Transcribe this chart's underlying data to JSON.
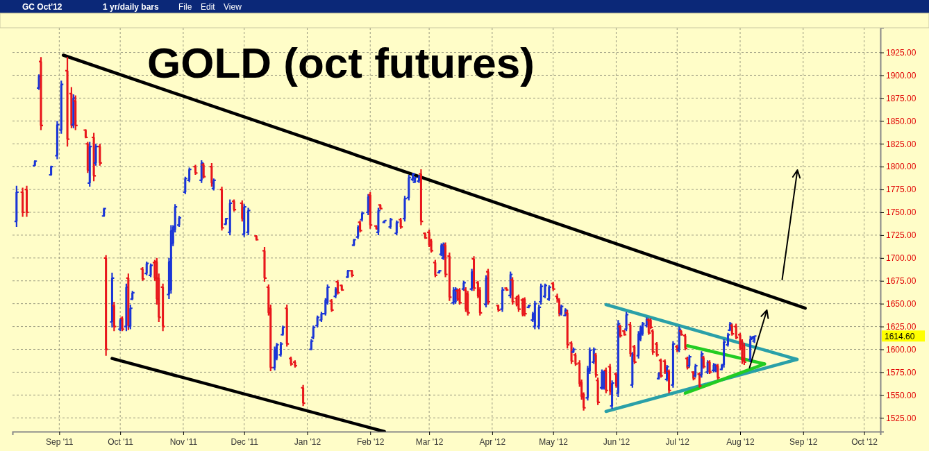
{
  "chart_data": {
    "type": "candlestick",
    "title": "GOLD (oct futures)",
    "annotations": [
      "GC Oct'12",
      "1 yr/daily bars",
      "File",
      "Edit",
      "View",
      "1614.60"
    ],
    "xlim": [
      "2011-08-09",
      "2012-10-09"
    ],
    "xticks": [
      {
        "value": "2011-09-01",
        "label": "Sep '11"
      },
      {
        "value": "2011-10-01",
        "label": "Oct '11"
      },
      {
        "value": "2011-11-01",
        "label": "Nov '11"
      },
      {
        "value": "2011-12-01",
        "label": "Dec '11"
      },
      {
        "value": "2012-01-01",
        "label": "Jan '12"
      },
      {
        "value": "2012-02-01",
        "label": "Feb '12"
      },
      {
        "value": "2012-03-01",
        "label": "Mar '12"
      },
      {
        "value": "2012-04-01",
        "label": "Apr '12"
      },
      {
        "value": "2012-05-01",
        "label": "May '12"
      },
      {
        "value": "2012-06-01",
        "label": "Jun '12"
      },
      {
        "value": "2012-07-01",
        "label": "Jul '12"
      },
      {
        "value": "2012-08-01",
        "label": "Aug '12"
      },
      {
        "value": "2012-09-01",
        "label": "Sep '12"
      },
      {
        "value": "2012-10-01",
        "label": "Oct '12"
      }
    ],
    "ylim": [
      1510,
      1952
    ],
    "yticks": [
      {
        "value": 1525,
        "label": "1525.00"
      },
      {
        "value": 1550,
        "label": "1550.00"
      },
      {
        "value": 1575,
        "label": "1575.00"
      },
      {
        "value": 1600,
        "label": "1600.00"
      },
      {
        "value": 1625,
        "label": "1625.00"
      },
      {
        "value": 1650,
        "label": "1650.00"
      },
      {
        "value": 1675,
        "label": "1675.00"
      },
      {
        "value": 1700,
        "label": "1700.00"
      },
      {
        "value": 1725,
        "label": "1725.00"
      },
      {
        "value": 1750,
        "label": "1750.00"
      },
      {
        "value": 1775,
        "label": "1775.00"
      },
      {
        "value": 1800,
        "label": "1800.00"
      },
      {
        "value": 1825,
        "label": "1825.00"
      },
      {
        "value": 1850,
        "label": "1850.00"
      },
      {
        "value": 1875,
        "label": "1875.00"
      },
      {
        "value": 1900,
        "label": "1900.00"
      },
      {
        "value": 1925,
        "label": "1925.00"
      }
    ],
    "grid": true,
    "x": [
      "2011-08-11",
      "2011-08-14",
      "2011-08-16",
      "2011-08-20",
      "2011-08-22",
      "2011-08-23",
      "2011-08-28",
      "2011-08-31",
      "2011-09-02",
      "2011-09-05",
      "2011-09-07",
      "2011-09-08",
      "2011-09-09",
      "2011-09-14",
      "2011-09-15",
      "2011-09-16",
      "2011-09-18",
      "2011-09-19",
      "2011-09-21",
      "2011-09-23",
      "2011-09-24",
      "2011-09-27",
      "2011-09-28",
      "2011-10-01",
      "2011-10-02",
      "2011-10-04",
      "2011-10-05",
      "2011-10-06",
      "2011-10-07",
      "2011-10-12",
      "2011-10-14",
      "2011-10-16",
      "2011-10-18",
      "2011-10-19",
      "2011-10-20",
      "2011-10-22",
      "2011-10-25",
      "2011-10-26",
      "2011-10-27",
      "2011-10-28",
      "2011-10-30",
      "2011-11-02",
      "2011-11-04",
      "2011-11-07",
      "2011-11-10",
      "2011-11-11",
      "2011-11-15",
      "2011-11-16",
      "2011-11-20",
      "2011-11-22",
      "2011-11-24",
      "2011-11-26",
      "2011-11-30",
      "2011-12-01",
      "2011-12-03",
      "2011-12-07",
      "2011-12-11",
      "2011-12-13",
      "2011-12-14",
      "2011-12-16",
      "2011-12-17",
      "2011-12-19",
      "2011-12-20",
      "2011-12-22",
      "2011-12-24",
      "2011-12-26",
      "2011-12-30",
      "2012-01-03",
      "2012-01-04",
      "2012-01-06",
      "2012-01-08",
      "2012-01-10",
      "2012-01-11",
      "2012-01-13",
      "2012-01-15",
      "2012-01-16",
      "2012-01-18",
      "2012-01-21",
      "2012-01-23",
      "2012-01-24",
      "2012-01-26",
      "2012-01-27",
      "2012-01-28",
      "2012-01-31",
      "2012-02-01",
      "2012-02-04",
      "2012-02-05",
      "2012-02-06",
      "2012-02-08",
      "2012-02-11",
      "2012-02-14",
      "2012-02-16",
      "2012-02-18",
      "2012-02-20",
      "2012-02-22",
      "2012-02-23",
      "2012-02-25",
      "2012-02-26",
      "2012-02-28",
      "2012-03-01",
      "2012-03-02",
      "2012-03-04",
      "2012-03-06",
      "2012-03-07",
      "2012-03-08",
      "2012-03-09",
      "2012-03-11",
      "2012-03-13",
      "2012-03-14",
      "2012-03-15",
      "2012-03-16",
      "2012-03-18",
      "2012-03-19",
      "2012-03-20",
      "2012-03-22",
      "2012-03-23",
      "2012-03-25",
      "2012-03-26",
      "2012-03-29",
      "2012-03-30",
      "2012-04-04",
      "2012-04-06",
      "2012-04-08",
      "2012-04-10",
      "2012-04-11",
      "2012-04-13",
      "2012-04-14",
      "2012-04-16",
      "2012-04-17",
      "2012-04-19",
      "2012-04-21",
      "2012-04-22",
      "2012-04-24",
      "2012-04-25",
      "2012-04-27",
      "2012-04-29",
      "2012-05-01",
      "2012-05-03",
      "2012-05-04",
      "2012-05-05",
      "2012-05-07",
      "2012-05-08",
      "2012-05-10",
      "2012-05-11",
      "2012-05-12",
      "2012-05-14",
      "2012-05-15",
      "2012-05-16",
      "2012-05-18",
      "2012-05-19",
      "2012-05-21",
      "2012-05-22",
      "2012-05-23",
      "2012-05-25",
      "2012-05-26",
      "2012-05-27",
      "2012-05-29",
      "2012-05-30",
      "2012-06-01",
      "2012-06-02",
      "2012-06-03",
      "2012-06-05",
      "2012-06-06",
      "2012-06-08",
      "2012-06-09",
      "2012-06-10",
      "2012-06-12",
      "2012-06-13",
      "2012-06-14",
      "2012-06-16",
      "2012-06-17",
      "2012-06-18",
      "2012-06-19",
      "2012-06-21",
      "2012-06-22",
      "2012-06-23",
      "2012-06-25",
      "2012-06-26",
      "2012-06-27",
      "2012-06-29",
      "2012-07-01",
      "2012-07-02",
      "2012-07-03",
      "2012-07-05",
      "2012-07-06",
      "2012-07-07",
      "2012-07-09",
      "2012-07-10",
      "2012-07-12",
      "2012-07-13",
      "2012-07-14",
      "2012-07-16",
      "2012-07-17",
      "2012-07-19",
      "2012-07-20",
      "2012-07-21",
      "2012-07-23",
      "2012-07-24",
      "2012-07-26",
      "2012-07-27",
      "2012-07-28",
      "2012-07-30",
      "2012-08-01",
      "2012-08-02",
      "2012-08-03",
      "2012-08-06",
      "2012-08-07",
      "2012-08-08"
    ],
    "ohlc": [
      [
        1740,
        1779,
        1734,
        1772
      ],
      [
        1772,
        1777,
        1745,
        1750
      ],
      [
        1775,
        1779,
        1745,
        1750
      ],
      [
        1801,
        1807,
        1801,
        1806
      ],
      [
        1886,
        1901,
        1884,
        1899
      ],
      [
        1915,
        1920,
        1840,
        1845
      ],
      [
        1791,
        1801,
        1790,
        1800
      ],
      [
        1812,
        1850,
        1808,
        1846
      ],
      [
        1840,
        1894,
        1836,
        1890
      ],
      [
        1905,
        1920,
        1822,
        1830
      ],
      [
        1880,
        1887,
        1842,
        1845
      ],
      [
        1846,
        1879,
        1842,
        1875
      ],
      [
        1872,
        1878,
        1840,
        1845
      ],
      [
        1840,
        1841,
        1831,
        1832
      ],
      [
        1825,
        1827,
        1793,
        1796
      ],
      [
        1782,
        1827,
        1778,
        1822
      ],
      [
        1832,
        1837,
        1784,
        1790
      ],
      [
        1804,
        1825,
        1801,
        1822
      ],
      [
        1822,
        1825,
        1801,
        1804
      ],
      [
        1746,
        1755,
        1745,
        1754
      ],
      [
        1700,
        1703,
        1593,
        1600
      ],
      [
        1630,
        1684,
        1624,
        1678
      ],
      [
        1648,
        1652,
        1620,
        1625
      ],
      [
        1622,
        1634,
        1620,
        1632
      ],
      [
        1634,
        1636,
        1620,
        1622
      ],
      [
        1625,
        1672,
        1620,
        1668
      ],
      [
        1678,
        1683,
        1621,
        1626
      ],
      [
        1625,
        1649,
        1622,
        1645
      ],
      [
        1655,
        1664,
        1654,
        1662
      ],
      [
        1688,
        1690,
        1675,
        1677
      ],
      [
        1683,
        1696,
        1681,
        1694
      ],
      [
        1681,
        1694,
        1679,
        1692
      ],
      [
        1695,
        1698,
        1675,
        1678
      ],
      [
        1696,
        1700,
        1649,
        1655
      ],
      [
        1678,
        1683,
        1630,
        1635
      ],
      [
        1668,
        1672,
        1620,
        1625
      ],
      [
        1660,
        1700,
        1655,
        1696
      ],
      [
        1665,
        1736,
        1661,
        1730
      ],
      [
        1716,
        1736,
        1713,
        1734
      ],
      [
        1731,
        1759,
        1728,
        1756
      ],
      [
        1736,
        1746,
        1734,
        1744
      ],
      [
        1772,
        1789,
        1770,
        1787
      ],
      [
        1785,
        1799,
        1783,
        1797
      ],
      [
        1800,
        1802,
        1791,
        1793
      ],
      [
        1785,
        1807,
        1782,
        1804
      ],
      [
        1802,
        1804,
        1787,
        1789
      ],
      [
        1800,
        1804,
        1778,
        1782
      ],
      [
        1776,
        1787,
        1774,
        1785
      ],
      [
        1775,
        1778,
        1730,
        1733
      ],
      [
        1737,
        1744,
        1736,
        1743
      ],
      [
        1728,
        1764,
        1725,
        1760
      ],
      [
        1762,
        1764,
        1751,
        1753
      ],
      [
        1760,
        1763,
        1740,
        1743
      ],
      [
        1726,
        1759,
        1723,
        1756
      ],
      [
        1728,
        1755,
        1725,
        1752
      ],
      [
        1724,
        1725,
        1719,
        1720
      ],
      [
        1708,
        1712,
        1674,
        1678
      ],
      [
        1668,
        1671,
        1637,
        1640
      ],
      [
        1645,
        1649,
        1576,
        1580
      ],
      [
        1580,
        1603,
        1577,
        1600
      ],
      [
        1590,
        1607,
        1588,
        1605
      ],
      [
        1594,
        1608,
        1592,
        1606
      ],
      [
        1616,
        1626,
        1615,
        1624
      ],
      [
        1645,
        1649,
        1603,
        1606
      ],
      [
        1590,
        1592,
        1582,
        1584
      ],
      [
        1586,
        1588,
        1580,
        1582
      ],
      [
        1558,
        1561,
        1538,
        1541
      ],
      [
        1600,
        1611,
        1599,
        1609
      ],
      [
        1613,
        1626,
        1611,
        1624
      ],
      [
        1626,
        1637,
        1624,
        1635
      ],
      [
        1632,
        1641,
        1630,
        1639
      ],
      [
        1639,
        1656,
        1637,
        1654
      ],
      [
        1651,
        1671,
        1649,
        1668
      ],
      [
        1653,
        1655,
        1641,
        1643
      ],
      [
        1658,
        1668,
        1656,
        1666
      ],
      [
        1674,
        1676,
        1660,
        1662
      ],
      [
        1670,
        1671,
        1664,
        1665
      ],
      [
        1679,
        1687,
        1678,
        1686
      ],
      [
        1686,
        1687,
        1679,
        1681
      ],
      [
        1714,
        1721,
        1713,
        1720
      ],
      [
        1723,
        1736,
        1721,
        1734
      ],
      [
        1739,
        1741,
        1728,
        1730
      ],
      [
        1742,
        1751,
        1740,
        1749
      ],
      [
        1750,
        1770,
        1747,
        1767
      ],
      [
        1769,
        1772,
        1732,
        1736
      ],
      [
        1735,
        1736,
        1731,
        1732
      ],
      [
        1728,
        1755,
        1725,
        1752
      ],
      [
        1758,
        1759,
        1753,
        1754
      ],
      [
        1739,
        1741,
        1738,
        1741
      ],
      [
        1734,
        1744,
        1732,
        1742
      ],
      [
        1727,
        1741,
        1725,
        1739
      ],
      [
        1742,
        1744,
        1732,
        1734
      ],
      [
        1743,
        1768,
        1740,
        1765
      ],
      [
        1766,
        1791,
        1763,
        1788
      ],
      [
        1786,
        1793,
        1784,
        1792
      ],
      [
        1783,
        1789,
        1782,
        1788
      ],
      [
        1784,
        1791,
        1782,
        1789
      ],
      [
        1792,
        1797,
        1736,
        1740
      ],
      [
        1727,
        1728,
        1721,
        1722
      ],
      [
        1728,
        1731,
        1712,
        1714
      ],
      [
        1719,
        1721,
        1706,
        1708
      ],
      [
        1695,
        1698,
        1679,
        1681
      ],
      [
        1684,
        1687,
        1683,
        1686
      ],
      [
        1704,
        1716,
        1702,
        1714
      ],
      [
        1700,
        1717,
        1698,
        1715
      ],
      [
        1714,
        1717,
        1679,
        1682
      ],
      [
        1702,
        1706,
        1653,
        1657
      ],
      [
        1651,
        1668,
        1649,
        1665
      ],
      [
        1652,
        1668,
        1650,
        1666
      ],
      [
        1664,
        1666,
        1653,
        1655
      ],
      [
        1665,
        1667,
        1649,
        1651
      ],
      [
        1666,
        1675,
        1664,
        1673
      ],
      [
        1665,
        1668,
        1641,
        1644
      ],
      [
        1661,
        1664,
        1637,
        1640
      ],
      [
        1666,
        1688,
        1664,
        1685
      ],
      [
        1699,
        1702,
        1664,
        1667
      ],
      [
        1673,
        1675,
        1656,
        1658
      ],
      [
        1665,
        1668,
        1637,
        1640
      ],
      [
        1649,
        1681,
        1646,
        1678
      ],
      [
        1685,
        1688,
        1649,
        1652
      ],
      [
        1648,
        1649,
        1641,
        1643
      ],
      [
        1644,
        1668,
        1641,
        1665
      ],
      [
        1667,
        1668,
        1664,
        1665
      ],
      [
        1659,
        1685,
        1656,
        1682
      ],
      [
        1676,
        1679,
        1649,
        1652
      ],
      [
        1656,
        1658,
        1647,
        1649
      ],
      [
        1658,
        1660,
        1641,
        1644
      ],
      [
        1654,
        1656,
        1636,
        1638
      ],
      [
        1655,
        1657,
        1636,
        1639
      ],
      [
        1646,
        1649,
        1645,
        1648
      ],
      [
        1632,
        1641,
        1630,
        1639
      ],
      [
        1625,
        1653,
        1622,
        1650
      ],
      [
        1625,
        1649,
        1622,
        1646
      ],
      [
        1652,
        1672,
        1649,
        1669
      ],
      [
        1658,
        1672,
        1656,
        1670
      ],
      [
        1655,
        1670,
        1653,
        1668
      ],
      [
        1672,
        1674,
        1664,
        1666
      ],
      [
        1658,
        1661,
        1651,
        1655
      ],
      [
        1654,
        1656,
        1636,
        1639
      ],
      [
        1639,
        1649,
        1637,
        1647
      ],
      [
        1637,
        1645,
        1636,
        1643
      ],
      [
        1640,
        1643,
        1601,
        1605
      ],
      [
        1607,
        1609,
        1584,
        1587
      ],
      [
        1597,
        1602,
        1596,
        1600
      ],
      [
        1594,
        1596,
        1582,
        1584
      ],
      [
        1585,
        1588,
        1559,
        1562
      ],
      [
        1564,
        1567,
        1545,
        1548
      ],
      [
        1551,
        1553,
        1533,
        1536
      ],
      [
        1547,
        1582,
        1544,
        1579
      ],
      [
        1576,
        1602,
        1573,
        1599
      ],
      [
        1586,
        1602,
        1584,
        1600
      ],
      [
        1594,
        1596,
        1569,
        1572
      ],
      [
        1566,
        1569,
        1539,
        1542
      ],
      [
        1558,
        1578,
        1556,
        1575
      ],
      [
        1558,
        1577,
        1556,
        1575
      ],
      [
        1577,
        1580,
        1552,
        1555
      ],
      [
        1581,
        1584,
        1550,
        1554
      ],
      [
        1538,
        1566,
        1535,
        1563
      ],
      [
        1573,
        1575,
        1558,
        1560
      ],
      [
        1552,
        1632,
        1548,
        1628
      ],
      [
        1625,
        1627,
        1613,
        1615
      ],
      [
        1620,
        1621,
        1615,
        1616
      ],
      [
        1622,
        1641,
        1620,
        1638
      ],
      [
        1627,
        1630,
        1592,
        1595
      ],
      [
        1561,
        1597,
        1558,
        1594
      ],
      [
        1603,
        1605,
        1584,
        1586
      ],
      [
        1593,
        1620,
        1590,
        1617
      ],
      [
        1611,
        1626,
        1609,
        1624
      ],
      [
        1617,
        1630,
        1615,
        1628
      ],
      [
        1626,
        1635,
        1624,
        1633
      ],
      [
        1632,
        1634,
        1616,
        1618
      ],
      [
        1632,
        1634,
        1622,
        1624
      ],
      [
        1620,
        1622,
        1594,
        1597
      ],
      [
        1606,
        1608,
        1592,
        1594
      ],
      [
        1568,
        1575,
        1567,
        1574
      ],
      [
        1588,
        1590,
        1569,
        1571
      ],
      [
        1587,
        1589,
        1573,
        1575
      ],
      [
        1567,
        1583,
        1565,
        1581
      ],
      [
        1576,
        1578,
        1552,
        1555
      ],
      [
        1561,
        1609,
        1558,
        1606
      ],
      [
        1603,
        1605,
        1597,
        1599
      ],
      [
        1600,
        1625,
        1597,
        1622
      ],
      [
        1620,
        1621,
        1615,
        1616
      ],
      [
        1615,
        1617,
        1599,
        1601
      ],
      [
        1590,
        1592,
        1578,
        1580
      ],
      [
        1582,
        1594,
        1580,
        1592
      ],
      [
        1575,
        1576,
        1566,
        1568
      ],
      [
        1571,
        1584,
        1569,
        1582
      ],
      [
        1573,
        1575,
        1558,
        1560
      ],
      [
        1572,
        1598,
        1569,
        1595
      ],
      [
        1591,
        1593,
        1579,
        1581
      ],
      [
        1575,
        1588,
        1573,
        1586
      ],
      [
        1586,
        1588,
        1573,
        1575
      ],
      [
        1577,
        1585,
        1575,
        1583
      ],
      [
        1577,
        1584,
        1575,
        1582
      ],
      [
        1582,
        1584,
        1567,
        1569
      ],
      [
        1578,
        1584,
        1577,
        1583
      ],
      [
        1583,
        1611,
        1580,
        1608
      ],
      [
        1605,
        1618,
        1603,
        1616
      ],
      [
        1621,
        1630,
        1620,
        1628
      ],
      [
        1626,
        1628,
        1615,
        1617
      ],
      [
        1625,
        1628,
        1611,
        1613
      ],
      [
        1616,
        1618,
        1599,
        1601
      ],
      [
        1609,
        1611,
        1584,
        1588
      ],
      [
        1604,
        1607,
        1583,
        1586
      ],
      [
        1589,
        1615,
        1586,
        1611
      ],
      [
        1612,
        1614,
        1611,
        1614
      ],
      [
        1609,
        1615,
        1607,
        1614.6
      ]
    ],
    "colors": [
      "#1a35d6",
      "#e8161b",
      "#e8161b",
      "#1a35d6",
      "#1a35d6",
      "#e8161b",
      "#1a35d6",
      "#1a35d6",
      "#1a35d6",
      "#e8161b",
      "#e8161b",
      "#1a35d6",
      "#e8161b",
      "#e8161b",
      "#e8161b",
      "#1a35d6",
      "#e8161b",
      "#1a35d6",
      "#e8161b",
      "#1a35d6",
      "#e8161b",
      "#1a35d6",
      "#e8161b",
      "#1a35d6",
      "#e8161b",
      "#1a35d6",
      "#e8161b",
      "#1a35d6",
      "#1a35d6",
      "#e8161b",
      "#1a35d6",
      "#1a35d6",
      "#e8161b",
      "#e8161b",
      "#e8161b",
      "#e8161b",
      "#1a35d6",
      "#1a35d6",
      "#1a35d6",
      "#1a35d6",
      "#1a35d6",
      "#1a35d6",
      "#1a35d6",
      "#e8161b",
      "#1a35d6",
      "#e8161b",
      "#e8161b",
      "#1a35d6",
      "#e8161b",
      "#1a35d6",
      "#1a35d6",
      "#e8161b",
      "#e8161b",
      "#1a35d6",
      "#1a35d6",
      "#e8161b",
      "#e8161b",
      "#e8161b",
      "#e8161b",
      "#1a35d6",
      "#1a35d6",
      "#1a35d6",
      "#1a35d6",
      "#e8161b",
      "#e8161b",
      "#e8161b",
      "#e8161b",
      "#1a35d6",
      "#1a35d6",
      "#1a35d6",
      "#1a35d6",
      "#1a35d6",
      "#1a35d6",
      "#e8161b",
      "#1a35d6",
      "#e8161b",
      "#e8161b",
      "#1a35d6",
      "#e8161b",
      "#1a35d6",
      "#1a35d6",
      "#e8161b",
      "#1a35d6",
      "#1a35d6",
      "#e8161b",
      "#e8161b",
      "#1a35d6",
      "#e8161b",
      "#1a35d6",
      "#1a35d6",
      "#1a35d6",
      "#e8161b",
      "#1a35d6",
      "#1a35d6",
      "#1a35d6",
      "#1a35d6",
      "#1a35d6",
      "#e8161b",
      "#e8161b",
      "#e8161b",
      "#e8161b",
      "#e8161b",
      "#1a35d6",
      "#1a35d6",
      "#1a35d6",
      "#e8161b",
      "#e8161b",
      "#1a35d6",
      "#1a35d6",
      "#e8161b",
      "#e8161b",
      "#1a35d6",
      "#e8161b",
      "#e8161b",
      "#1a35d6",
      "#e8161b",
      "#e8161b",
      "#e8161b",
      "#1a35d6",
      "#e8161b",
      "#e8161b",
      "#1a35d6",
      "#e8161b",
      "#1a35d6",
      "#e8161b",
      "#e8161b",
      "#e8161b",
      "#e8161b",
      "#e8161b",
      "#1a35d6",
      "#1a35d6",
      "#1a35d6",
      "#1a35d6",
      "#1a35d6",
      "#1a35d6",
      "#1a35d6",
      "#e8161b",
      "#e8161b",
      "#e8161b",
      "#1a35d6",
      "#1a35d6",
      "#e8161b",
      "#e8161b",
      "#1a35d6",
      "#e8161b",
      "#e8161b",
      "#e8161b",
      "#e8161b",
      "#1a35d6",
      "#1a35d6",
      "#1a35d6",
      "#e8161b",
      "#e8161b",
      "#1a35d6",
      "#1a35d6",
      "#e8161b",
      "#e8161b",
      "#1a35d6",
      "#e8161b",
      "#1a35d6",
      "#e8161b",
      "#e8161b",
      "#1a35d6",
      "#e8161b",
      "#1a35d6",
      "#e8161b",
      "#1a35d6",
      "#1a35d6",
      "#1a35d6",
      "#1a35d6",
      "#e8161b",
      "#e8161b",
      "#e8161b",
      "#e8161b",
      "#1a35d6",
      "#e8161b",
      "#e8161b",
      "#1a35d6",
      "#e8161b",
      "#1a35d6",
      "#e8161b",
      "#1a35d6",
      "#e8161b",
      "#e8161b",
      "#e8161b",
      "#1a35d6",
      "#e8161b",
      "#1a35d6",
      "#e8161b",
      "#1a35d6",
      "#e8161b",
      "#1a35d6",
      "#e8161b",
      "#1a35d6",
      "#1a35d6",
      "#e8161b",
      "#1a35d6",
      "#1a35d6",
      "#1a35d6",
      "#1a35d6",
      "#e8161b",
      "#e8161b",
      "#e8161b",
      "#e8161b",
      "#e8161b",
      "#1a35d6",
      "#1a35d6",
      "#1a35d6"
    ],
    "series": [
      {
        "type": "line",
        "color": "#000000",
        "x": [
          "2011-09-03",
          "2012-09-02"
        ],
        "values": [
          1922,
          1645
        ]
      },
      {
        "type": "line",
        "color": "#000000",
        "x": [
          "2011-09-27",
          "2012-02-08"
        ],
        "values": [
          1590,
          1510
        ]
      },
      {
        "type": "line",
        "color": "#2aa0a8",
        "x": [
          "2012-05-27",
          "2012-08-29"
        ],
        "values": [
          1649,
          1589
        ]
      },
      {
        "type": "line",
        "color": "#2aa0a8",
        "x": [
          "2012-05-27",
          "2012-08-29"
        ],
        "values": [
          1532,
          1589
        ]
      },
      {
        "type": "line",
        "color": "#22cc22",
        "x": [
          "2012-07-06",
          "2012-08-13"
        ],
        "values": [
          1604,
          1584
        ]
      },
      {
        "type": "line",
        "color": "#22cc22",
        "x": [
          "2012-07-05",
          "2012-08-13"
        ],
        "values": [
          1552,
          1584
        ]
      }
    ]
  }
}
